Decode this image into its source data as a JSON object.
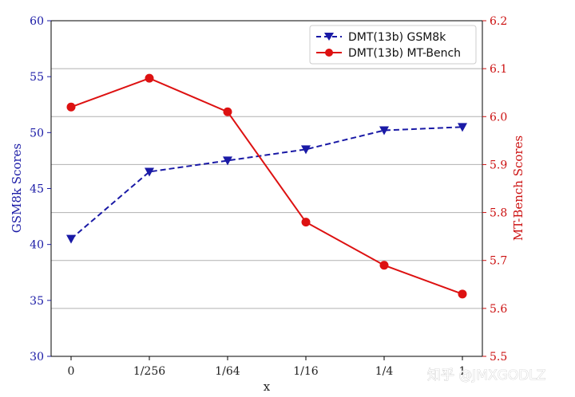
{
  "chart_data": {
    "type": "line",
    "xlabel": "x",
    "categories": [
      "0",
      "1/256",
      "1/64",
      "1/16",
      "1/4",
      "1"
    ],
    "y_left": {
      "label": "GSM8k Scores",
      "ylim": [
        30,
        60
      ],
      "ticks": [
        30,
        35,
        40,
        45,
        50,
        55,
        60
      ],
      "color": "#1a1aa6"
    },
    "y_right": {
      "label": "MT-Bench Scores",
      "ylim": [
        5.5,
        6.2
      ],
      "ticks": [
        "5.5",
        "5.6",
        "5.7",
        "5.8",
        "5.9",
        "6.0",
        "6.1",
        "6.2"
      ],
      "color": "#cc1111"
    },
    "series": [
      {
        "name": "DMT(13b) GSM8k",
        "axis": "left",
        "color": "#1a1aa6",
        "marker": "triangle-down",
        "line_style": "dashed",
        "values": [
          40.5,
          46.5,
          47.5,
          48.5,
          50.2,
          50.5
        ]
      },
      {
        "name": "DMT(13b) MT-Bench",
        "axis": "right",
        "color": "#dd1111",
        "marker": "circle",
        "line_style": "solid",
        "values": [
          6.02,
          6.08,
          6.01,
          5.78,
          5.69,
          5.63
        ]
      }
    ],
    "grid": "horizontal (right axis)",
    "legend_position": "top-right"
  },
  "watermark": "知乎 @JMXGODLZ"
}
